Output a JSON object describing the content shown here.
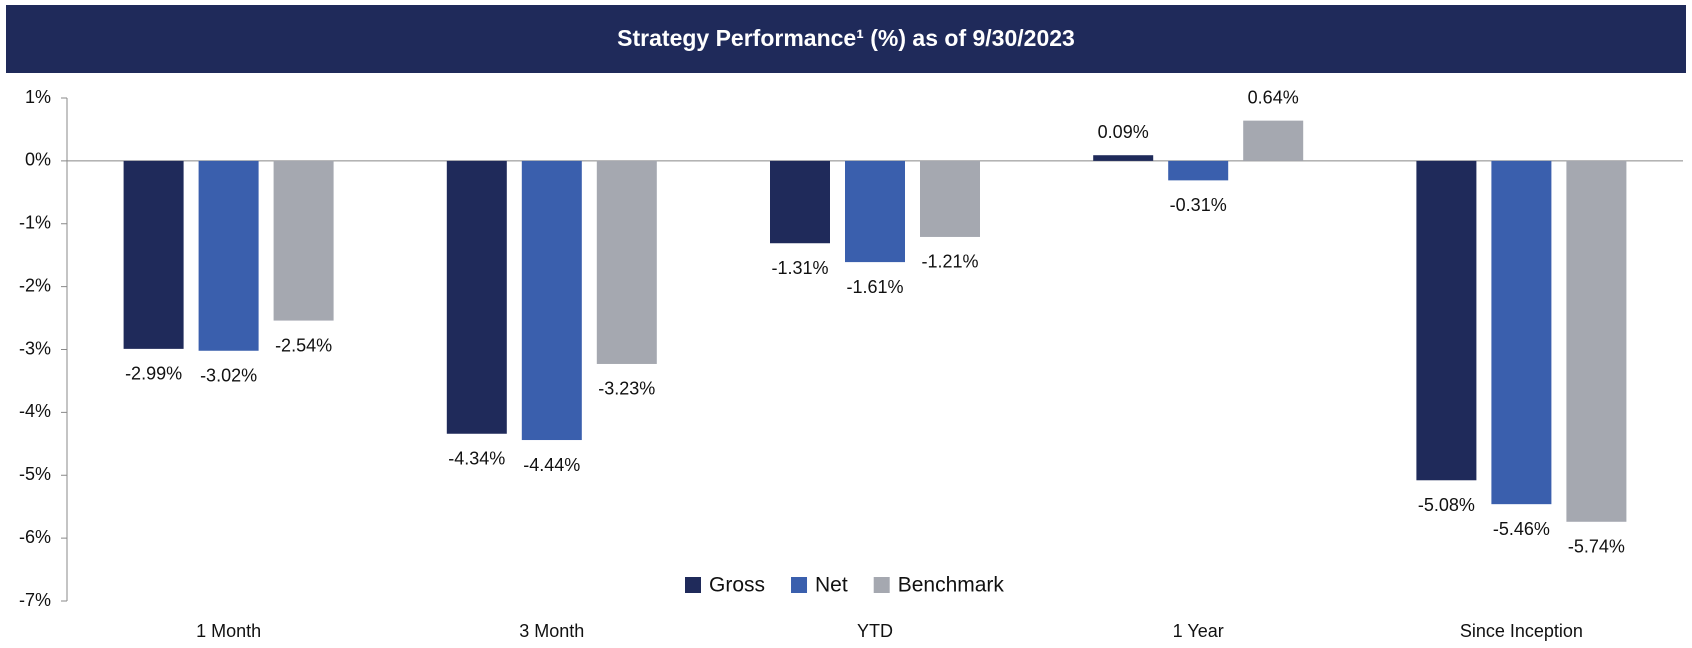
{
  "chart_data": {
    "type": "bar",
    "title": "Strategy Performance¹ (%) as of 9/30/2023",
    "categories": [
      "1 Month",
      "3 Month",
      "YTD",
      "1 Year",
      "Since Inception"
    ],
    "series": [
      {
        "name": "Gross",
        "color": "#1f2a5a",
        "values": [
          -2.99,
          -4.34,
          -1.31,
          0.09,
          -5.08
        ],
        "value_labels": [
          "-2.99%",
          "-4.34%",
          "-1.31%",
          "0.09%",
          "-5.08%"
        ]
      },
      {
        "name": "Net",
        "color": "#3a5fad",
        "values": [
          -3.02,
          -4.44,
          -1.61,
          -0.31,
          -5.46
        ],
        "value_labels": [
          "-3.02%",
          "-4.44%",
          "-1.61%",
          "-0.31%",
          "-5.46%"
        ]
      },
      {
        "name": "Benchmark",
        "color": "#a5a8b0",
        "values": [
          -2.54,
          -3.23,
          -1.21,
          0.64,
          -5.74
        ],
        "value_labels": [
          "-2.54%",
          "-3.23%",
          "-1.21%",
          "0.64%",
          "-5.74%"
        ]
      }
    ],
    "ylim": [
      -7,
      1
    ],
    "yticks": [
      {
        "value": 1,
        "label": "1%"
      },
      {
        "value": 0,
        "label": "0%"
      },
      {
        "value": -1,
        "label": "-1%"
      },
      {
        "value": -2,
        "label": "-2%"
      },
      {
        "value": -3,
        "label": "-3%"
      },
      {
        "value": -4,
        "label": "-4%"
      },
      {
        "value": -5,
        "label": "-5%"
      },
      {
        "value": -6,
        "label": "-6%"
      },
      {
        "value": -7,
        "label": "-7%"
      }
    ],
    "grid": false,
    "legend": "bottom"
  }
}
